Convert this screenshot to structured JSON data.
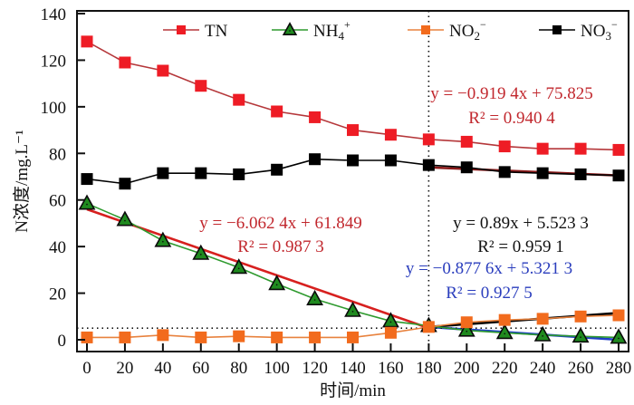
{
  "chart_data": {
    "type": "line",
    "title": "",
    "xlabel": "时间/min",
    "ylabel": "N浓度/mg.L⁻¹",
    "xlim": [
      0,
      280
    ],
    "ylim": [
      0,
      140
    ],
    "x_ticks": [
      0,
      20,
      40,
      60,
      80,
      100,
      120,
      140,
      160,
      180,
      200,
      220,
      240,
      260,
      280
    ],
    "y_ticks": [
      0,
      20,
      40,
      60,
      80,
      100,
      120,
      140
    ],
    "grid": false,
    "legend_position": "top",
    "x": [
      0,
      20,
      40,
      60,
      80,
      100,
      120,
      140,
      160,
      180,
      200,
      220,
      240,
      260,
      280
    ],
    "series": [
      {
        "name": "TN",
        "label_main": "TN",
        "label_sub": "",
        "label_sup": "",
        "color": "#ee1c25",
        "line_color": "#b5373a",
        "marker": "square",
        "values": [
          128,
          119,
          115.5,
          109,
          103,
          98,
          95.5,
          90,
          88,
          86,
          85,
          83,
          82,
          82,
          81.5
        ]
      },
      {
        "name": "NH4+",
        "label_main": "NH",
        "label_sub": "4",
        "label_sup": "+",
        "color": "#1f8a1f",
        "line_color": "#2e9a2e",
        "marker": "triangle",
        "values": [
          58.5,
          51.5,
          42.5,
          37,
          31,
          24,
          17.5,
          12.5,
          8,
          6,
          4,
          3,
          2,
          1.5,
          1
        ]
      },
      {
        "name": "NO2-",
        "label_main": "NO",
        "label_sub": "2",
        "label_sup": "−",
        "color": "#f26b1d",
        "line_color": "#e8823e",
        "marker": "square",
        "values": [
          1,
          1,
          2,
          1,
          1.5,
          1,
          1,
          1,
          3,
          5.5,
          7.5,
          8.5,
          9,
          10,
          10.5
        ]
      },
      {
        "name": "NO3-",
        "label_main": "NO",
        "label_sub": "3",
        "label_sup": "−",
        "color": "#000000",
        "line_color": "#000000",
        "marker": "square",
        "values": [
          69,
          67,
          71.5,
          71.5,
          71,
          73,
          77.5,
          77,
          77,
          75,
          74,
          72,
          71.5,
          71,
          70.5
        ]
      }
    ],
    "reference_lines": {
      "vertical_x": 180,
      "horizontal_y": 5
    },
    "fit_lines": [
      {
        "name": "NH4+ fit (0-180)",
        "color": "#d7201f",
        "x_range": [
          0,
          180
        ],
        "y_range": [
          56,
          5
        ],
        "equation": "y = −6.062 4x + 61.849",
        "r2": "R² = 0.987 3",
        "eq_color": "#c1272d"
      },
      {
        "name": "TN fit (180-280)",
        "color": "#8b1a1a",
        "x_range": [
          180,
          280
        ],
        "y_range": [
          74,
          70.5
        ],
        "equation": "y = −0.919 4x + 75.825",
        "r2": "R² = 0.940 4",
        "eq_color": "#c1272d"
      },
      {
        "name": "NO2- fit (180-280)",
        "color": "#000000",
        "x_range": [
          180,
          280
        ],
        "y_range": [
          5.5,
          11.5
        ],
        "equation": "y = 0.89x + 5.523 3",
        "r2": "R² = 0.959 1",
        "eq_color": "#111111"
      },
      {
        "name": "NH4+ fit (180-280)",
        "color": "#1f3fc7",
        "x_range": [
          180,
          280
        ],
        "y_range": [
          5.5,
          0
        ],
        "equation": "y = −0.877 6x + 5.321 3",
        "r2": "R² = 0.927 5",
        "eq_color": "#2a3dbd"
      }
    ]
  }
}
